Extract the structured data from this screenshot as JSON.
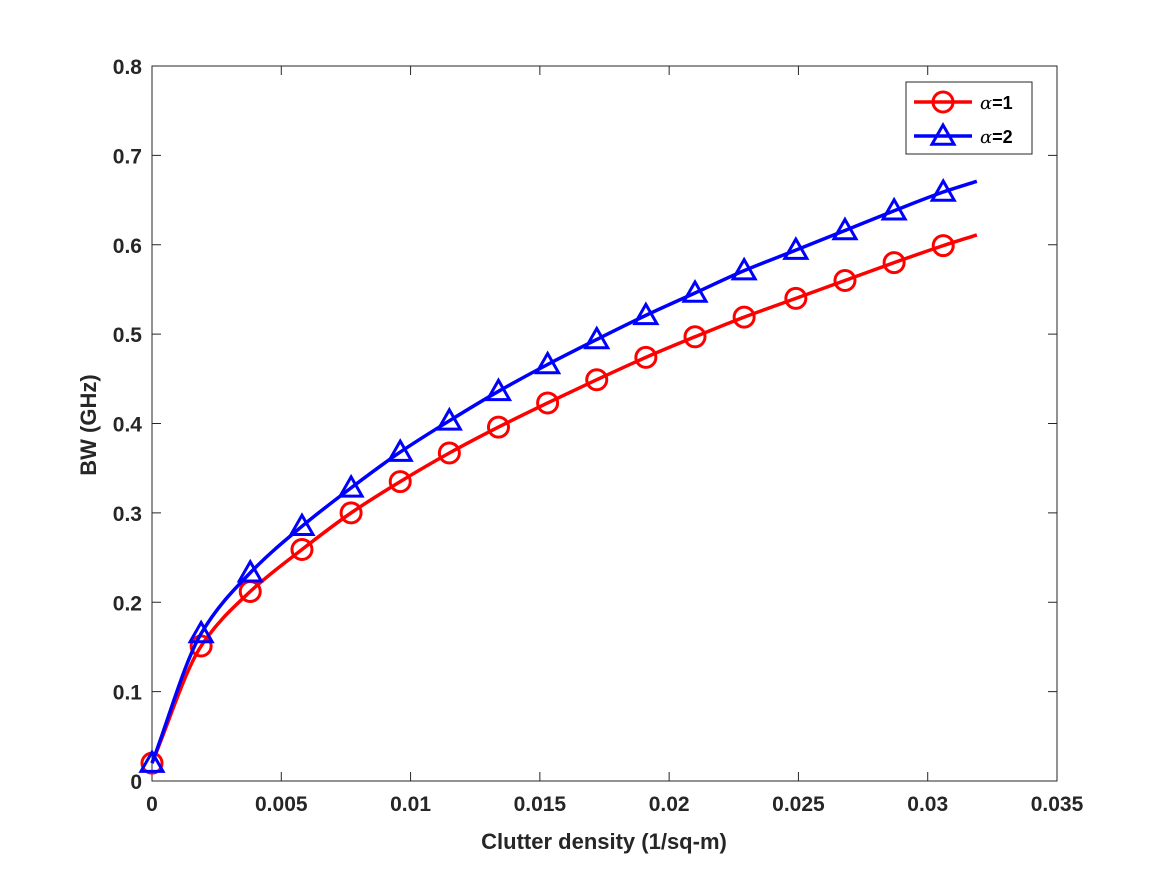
{
  "chart_data": {
    "type": "line",
    "xlabel": "Clutter density (1/sq-m)",
    "ylabel": "BW (GHz)",
    "xlim": [
      0,
      0.035
    ],
    "ylim": [
      0,
      0.8
    ],
    "xticks": [
      0,
      0.005,
      0.01,
      0.015,
      0.02,
      0.025,
      0.03,
      0.035
    ],
    "xtick_labels": [
      "0",
      "0.005",
      "0.01",
      "0.015",
      "0.02",
      "0.025",
      "0.03",
      "0.035"
    ],
    "yticks": [
      0,
      0.1,
      0.2,
      0.3,
      0.4,
      0.5,
      0.6,
      0.7,
      0.8
    ],
    "ytick_labels": [
      "0",
      "0.1",
      "0.2",
      "0.3",
      "0.4",
      "0.5",
      "0.6",
      "0.7",
      "0.8"
    ],
    "grid": false,
    "legend_position": "top-right",
    "series": [
      {
        "name_symbol": "α",
        "name_suffix": "=1",
        "color": "#ff0000",
        "marker": "circle",
        "x": [
          0,
          0.0019,
          0.0038,
          0.0058,
          0.0077,
          0.0096,
          0.0115,
          0.0134,
          0.0153,
          0.0172,
          0.0191,
          0.021,
          0.0229,
          0.0249,
          0.0268,
          0.0287,
          0.0306,
          0.0319
        ],
        "y": [
          0.02,
          0.151,
          0.212,
          0.259,
          0.3,
          0.335,
          0.367,
          0.396,
          0.423,
          0.449,
          0.474,
          0.497,
          0.519,
          0.54,
          0.56,
          0.58,
          0.599,
          0.611
        ],
        "marker_indices": [
          0,
          1,
          2,
          3,
          4,
          5,
          6,
          7,
          8,
          9,
          10,
          11,
          12,
          13,
          14,
          15,
          16
        ]
      },
      {
        "name_symbol": "α",
        "name_suffix": "=2",
        "color": "#0000ff",
        "marker": "triangle",
        "x": [
          0,
          0.0019,
          0.0038,
          0.0058,
          0.0077,
          0.0096,
          0.0115,
          0.0134,
          0.0153,
          0.0172,
          0.0191,
          0.021,
          0.0229,
          0.0249,
          0.0268,
          0.0287,
          0.0306,
          0.0319
        ],
        "y": [
          0.02,
          0.165,
          0.233,
          0.285,
          0.328,
          0.368,
          0.403,
          0.436,
          0.466,
          0.494,
          0.521,
          0.546,
          0.571,
          0.594,
          0.616,
          0.638,
          0.659,
          0.671
        ],
        "marker_indices": [
          0,
          1,
          2,
          3,
          4,
          5,
          6,
          7,
          8,
          9,
          10,
          11,
          12,
          13,
          14,
          15,
          16
        ]
      }
    ]
  }
}
